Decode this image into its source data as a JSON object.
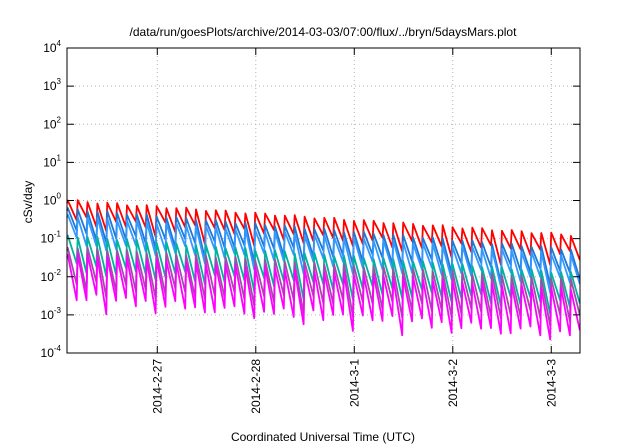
{
  "chart_data": {
    "type": "line",
    "title": "/data/run/goesPlots/archive/2014-03-03/07:00/flux/../bryn/5daysMars.plot",
    "xlabel": "Coordinated Universal Time (UTC)",
    "ylabel": "cSv/day",
    "y_scale": "log",
    "ylim": [
      0.0001,
      10000
    ],
    "y_ticks": [
      {
        "base": "10",
        "exp": "4"
      },
      {
        "base": "10",
        "exp": "3"
      },
      {
        "base": "10",
        "exp": "2"
      },
      {
        "base": "10",
        "exp": "1"
      },
      {
        "base": "10",
        "exp": "0"
      },
      {
        "base": "10",
        "exp": "-1"
      },
      {
        "base": "10",
        "exp": "-2"
      },
      {
        "base": "10",
        "exp": "-3"
      },
      {
        "base": "10",
        "exp": "-4"
      }
    ],
    "xlim": [
      "2014-02-26T02:00",
      "2014-03-03T07:00"
    ],
    "x_ticks": [
      "2014-2-27",
      "2014-2-28",
      "2014-3-1",
      "2014-3-2",
      "2014-3-3"
    ],
    "grid": true,
    "cycles_per_day": 10,
    "series": [
      {
        "color": "#ff0000",
        "peak_start": 1.0,
        "peak_end": 0.12,
        "min_ratio": 0.3
      },
      {
        "color": "#1f77d4",
        "peak_start": 0.6,
        "peak_end": 0.05,
        "min_ratio": 0.22
      },
      {
        "color": "#3399ff",
        "peak_start": 0.4,
        "peak_end": 0.035,
        "min_ratio": 0.2
      },
      {
        "color": "#00b3a0",
        "peak_start": 0.12,
        "peak_end": 0.012,
        "min_ratio": 0.15
      },
      {
        "color": "#9f4fa8",
        "peak_start": 0.06,
        "peak_end": 0.008,
        "min_ratio": 0.1
      },
      {
        "color": "#ff00ff",
        "peak_start": 0.04,
        "peak_end": 0.0045,
        "min_ratio": 0.07
      }
    ]
  }
}
